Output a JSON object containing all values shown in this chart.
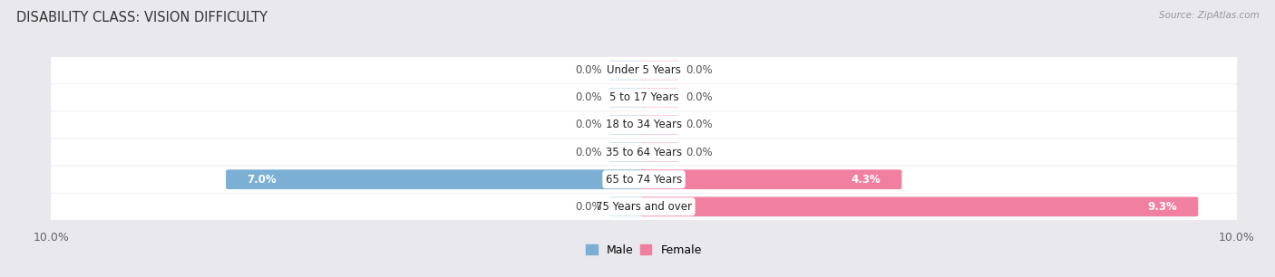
{
  "title": "DISABILITY CLASS: VISION DIFFICULTY",
  "source": "Source: ZipAtlas.com",
  "categories": [
    "Under 5 Years",
    "5 to 17 Years",
    "18 to 34 Years",
    "35 to 64 Years",
    "65 to 74 Years",
    "75 Years and over"
  ],
  "male_values": [
    0.0,
    0.0,
    0.0,
    0.0,
    7.0,
    0.0
  ],
  "female_values": [
    0.0,
    0.0,
    0.0,
    0.0,
    4.3,
    9.3
  ],
  "male_color": "#7bafd4",
  "female_color": "#f07fa0",
  "male_color_light": "#c5dcee",
  "female_color_light": "#f7c5d0",
  "row_bg_color": "#ffffff",
  "outer_bg_color": "#e8e8ed",
  "xlim": 10.0,
  "legend_male": "Male",
  "legend_female": "Female",
  "bar_height": 0.62,
  "title_fontsize": 10.5,
  "label_fontsize": 8.5,
  "category_fontsize": 8.5,
  "zero_stub": 0.55
}
